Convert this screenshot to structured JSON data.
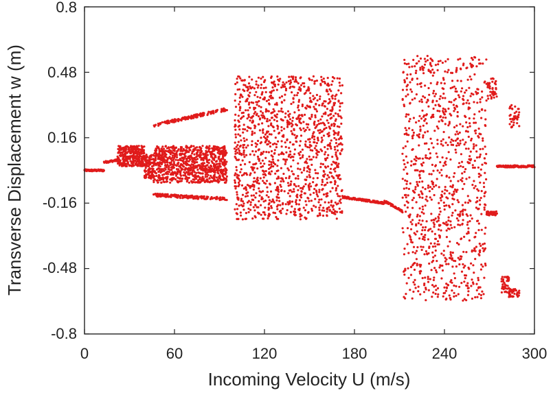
{
  "chart_data": {
    "type": "scatter",
    "title": "",
    "xlabel": "Incoming  Velocity  U  (m/s)",
    "ylabel": "Transverse  Displacement  w  (m)",
    "xlim": [
      0,
      300
    ],
    "ylim": [
      -0.8,
      0.8
    ],
    "xticks": [
      "0",
      "60",
      "120",
      "180",
      "240",
      "300"
    ],
    "yticks": [
      "0.8",
      "0.48",
      "0.16",
      "-0.16",
      "-0.48",
      "-0.8"
    ],
    "grid": false,
    "legend": "none",
    "marker_color": "#e01b1b",
    "series": [
      {
        "regions": [
          {
            "x": [
              0,
              13
            ],
            "y": [
              0.0,
              0.0
            ],
            "kind": "line"
          },
          {
            "x": [
              13,
              22
            ],
            "y": [
              0.04,
              0.05
            ],
            "kind": "line"
          },
          {
            "x": [
              22,
              40
            ],
            "y": [
              0.02,
              0.12
            ],
            "kind": "band"
          },
          {
            "x": [
              40,
              46
            ],
            "y": [
              -0.04,
              0.08
            ],
            "kind": "band"
          },
          {
            "x": [
              46,
              95
            ],
            "y": [
              -0.06,
              0.12
            ],
            "kind": "band"
          },
          {
            "x": [
              46,
              95
            ],
            "y": [
              0.22,
              0.3
            ],
            "kind": "upper-envelope"
          },
          {
            "x": [
              46,
              95
            ],
            "y": [
              -0.12,
              -0.14
            ],
            "kind": "lower-envelope"
          },
          {
            "x": [
              100,
              172
            ],
            "y": [
              -0.24,
              0.46
            ],
            "kind": "band"
          },
          {
            "x": [
              172,
              200
            ],
            "y": [
              -0.13,
              -0.16
            ],
            "kind": "line"
          },
          {
            "x": [
              200,
              212
            ],
            "y": [
              -0.15,
              -0.2
            ],
            "kind": "line"
          },
          {
            "x": [
              212,
              268
            ],
            "y": [
              -0.64,
              0.56
            ],
            "kind": "band"
          },
          {
            "x": [
              268,
              275
            ],
            "y": [
              0.35,
              0.45
            ],
            "kind": "cluster"
          },
          {
            "x": [
              268,
              275
            ],
            "y": [
              -0.2,
              -0.22
            ],
            "kind": "cluster"
          },
          {
            "x": [
              278,
              283
            ],
            "y": [
              -0.52,
              -0.6
            ],
            "kind": "cluster"
          },
          {
            "x": [
              283,
              290
            ],
            "y": [
              0.21,
              0.32
            ],
            "kind": "cluster"
          },
          {
            "x": [
              283,
              290
            ],
            "y": [
              -0.58,
              -0.62
            ],
            "kind": "cluster"
          },
          {
            "x": [
              275,
              300
            ],
            "y": [
              0.02,
              0.02
            ],
            "kind": "line"
          }
        ]
      }
    ]
  }
}
